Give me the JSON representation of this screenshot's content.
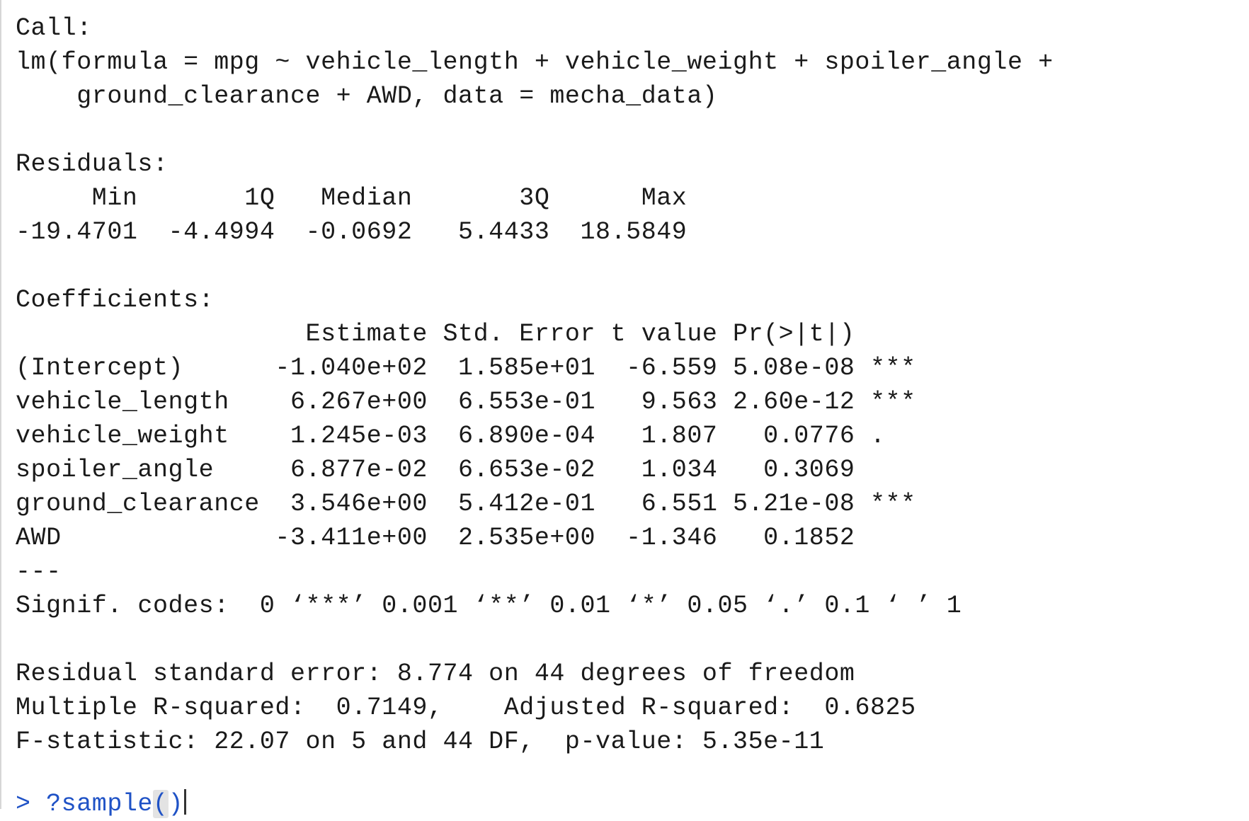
{
  "console": {
    "lines": [
      "Call:",
      "lm(formula = mpg ~ vehicle_length + vehicle_weight + spoiler_angle + ",
      "    ground_clearance + AWD, data = mecha_data)",
      "",
      "Residuals:",
      "     Min       1Q   Median       3Q      Max ",
      "-19.4701  -4.4994  -0.0692   5.4433  18.5849 ",
      "",
      "Coefficients:",
      "                   Estimate Std. Error t value Pr(>|t|)    ",
      "(Intercept)      -1.040e+02  1.585e+01  -6.559 5.08e-08 ***",
      "vehicle_length    6.267e+00  6.553e-01   9.563 2.60e-12 ***",
      "vehicle_weight    1.245e-03  6.890e-04   1.807   0.0776 .  ",
      "spoiler_angle     6.877e-02  6.653e-02   1.034   0.3069    ",
      "ground_clearance  3.546e+00  5.412e-01   6.551 5.21e-08 ***",
      "AWD              -3.411e+00  2.535e+00  -1.346   0.1852    ",
      "---",
      "Signif. codes:  0 ‘***’ 0.001 ‘**’ 0.01 ‘*’ 0.05 ‘.’ 0.1 ‘ ’ 1",
      "",
      "Residual standard error: 8.774 on 44 degrees of freedom",
      "Multiple R-squared:  0.7149,\tAdjusted R-squared:  0.6825 ",
      "F-statistic: 22.07 on 5 and 44 DF,  p-value: 5.35e-11",
      ""
    ],
    "prompt": {
      "symbol": "> ",
      "command": "?sample",
      "open_paren": "(",
      "close_paren": ")"
    },
    "colors": {
      "text": "#1a1a1a",
      "prompt": "#1f52c6",
      "background": "#ffffff",
      "border": "#d6d6d6"
    }
  }
}
